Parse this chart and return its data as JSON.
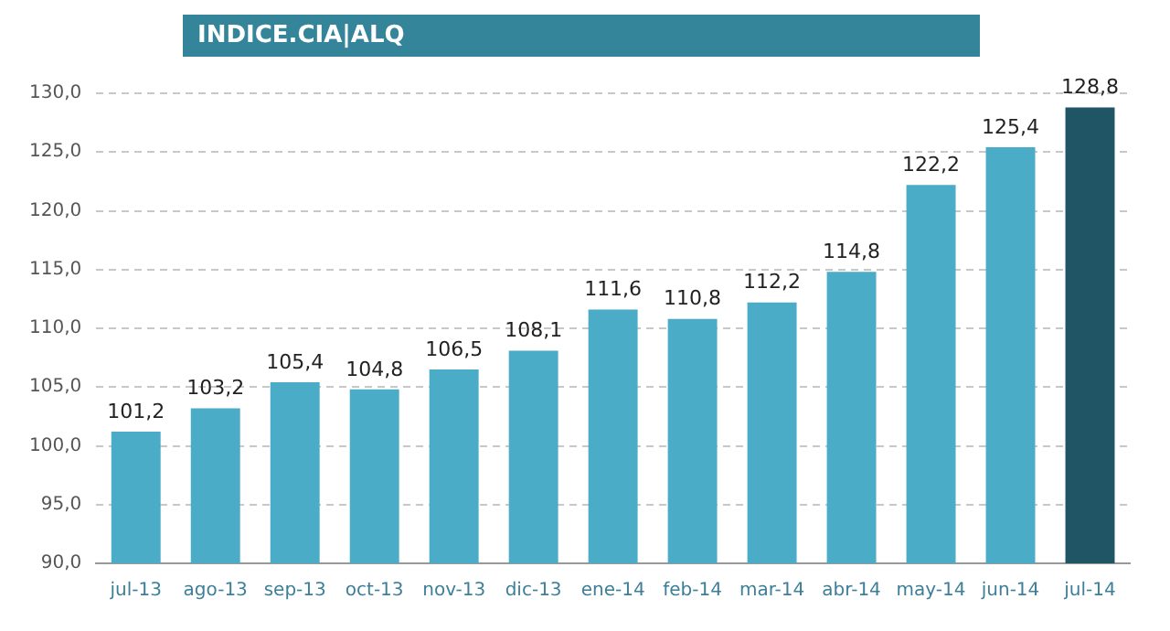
{
  "chart_data": {
    "type": "bar",
    "title": "INDICE.CIA|ALQ",
    "categories": [
      "jul-13",
      "ago-13",
      "sep-13",
      "oct-13",
      "nov-13",
      "dic-13",
      "ene-14",
      "feb-14",
      "mar-14",
      "abr-14",
      "may-14",
      "jun-14",
      "jul-14"
    ],
    "values": [
      101.2,
      103.2,
      105.4,
      104.8,
      106.5,
      108.1,
      111.6,
      110.8,
      112.2,
      114.8,
      122.2,
      125.4,
      128.8
    ],
    "value_labels": [
      "101,2",
      "103,2",
      "105,4",
      "104,8",
      "106,5",
      "108,1",
      "111,6",
      "110,8",
      "112,2",
      "114,8",
      "122,2",
      "125,4",
      "128,8"
    ],
    "colors": [
      "#4aacc6",
      "#4aacc6",
      "#4aacc6",
      "#4aacc6",
      "#4aacc6",
      "#4aacc6",
      "#4aacc6",
      "#4aacc6",
      "#4aacc6",
      "#4aacc6",
      "#4aacc6",
      "#4aacc6",
      "#1f5565"
    ],
    "ylim": [
      90,
      130
    ],
    "yticks": [
      {
        "value": 90,
        "label": "90,0"
      },
      {
        "value": 95,
        "label": "95,0"
      },
      {
        "value": 100,
        "label": "100,0"
      },
      {
        "value": 105,
        "label": "105,0"
      },
      {
        "value": 110,
        "label": "110,0"
      },
      {
        "value": 115,
        "label": "115,0"
      },
      {
        "value": 120,
        "label": "120,0"
      },
      {
        "value": 125,
        "label": "125,0"
      },
      {
        "value": 130,
        "label": "130,0"
      }
    ],
    "grid": "y"
  }
}
